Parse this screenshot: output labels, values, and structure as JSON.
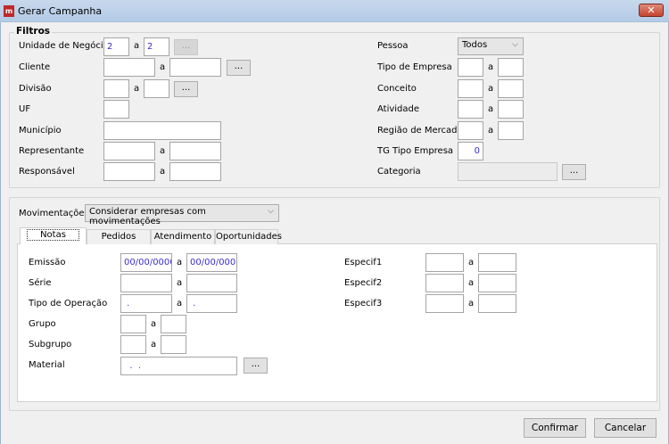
{
  "window": {
    "title": "Gerar Campanha",
    "icon": "app-logo-icon",
    "close_icon": "close-icon"
  },
  "filtros": {
    "legend": "Filtros",
    "sep": "a",
    "ellipsis": "...",
    "unidade": {
      "label": "Unidade de Negócio",
      "from": "2",
      "to": "2"
    },
    "cliente": {
      "label": "Cliente",
      "from": "",
      "to": ""
    },
    "divisao": {
      "label": "Divisão",
      "from": "",
      "to": ""
    },
    "uf": {
      "label": "UF",
      "value": ""
    },
    "municipio": {
      "label": "Município",
      "value": ""
    },
    "representante": {
      "label": "Representante",
      "from": "",
      "to": ""
    },
    "responsavel": {
      "label": "Responsável",
      "from": "",
      "to": ""
    },
    "pessoa": {
      "label": "Pessoa",
      "value": "Todos"
    },
    "tipo_empresa": {
      "label": "Tipo de Empresa",
      "from": "",
      "to": ""
    },
    "conceito": {
      "label": "Conceito",
      "from": "",
      "to": ""
    },
    "atividade": {
      "label": "Atividade",
      "from": "",
      "to": ""
    },
    "regiao": {
      "label": "Região de Mercado",
      "from": "",
      "to": ""
    },
    "tg_tipo": {
      "label": "TG Tipo Empresa",
      "value": "0"
    },
    "categoria": {
      "label": "Categoria",
      "value": ""
    }
  },
  "mov": {
    "label": "Movimentações",
    "value": "Considerar empresas com movimentações",
    "tabs": [
      "Notas",
      "Pedidos",
      "Atendimento",
      "Oportunidades"
    ],
    "emissao": {
      "label": "Emissão",
      "from": "00/00/0000",
      "to": "00/00/0000"
    },
    "serie": {
      "label": "Série",
      "from": "",
      "to": ""
    },
    "tipo_op": {
      "label": "Tipo de Operação",
      "from": " .",
      "to": " ."
    },
    "grupo": {
      "label": "Grupo",
      "from": "",
      "to": ""
    },
    "subgrupo": {
      "label": "Subgrupo",
      "from": "",
      "to": ""
    },
    "material": {
      "label": "Material",
      "value": "  .  ."
    },
    "especif1": {
      "label": "Especif1",
      "from": "",
      "to": ""
    },
    "especif2": {
      "label": "Especif2",
      "from": "",
      "to": ""
    },
    "especif3": {
      "label": "Especif3",
      "from": "",
      "to": ""
    }
  },
  "footer": {
    "confirm": "Confirmar",
    "cancel": "Cancelar"
  }
}
